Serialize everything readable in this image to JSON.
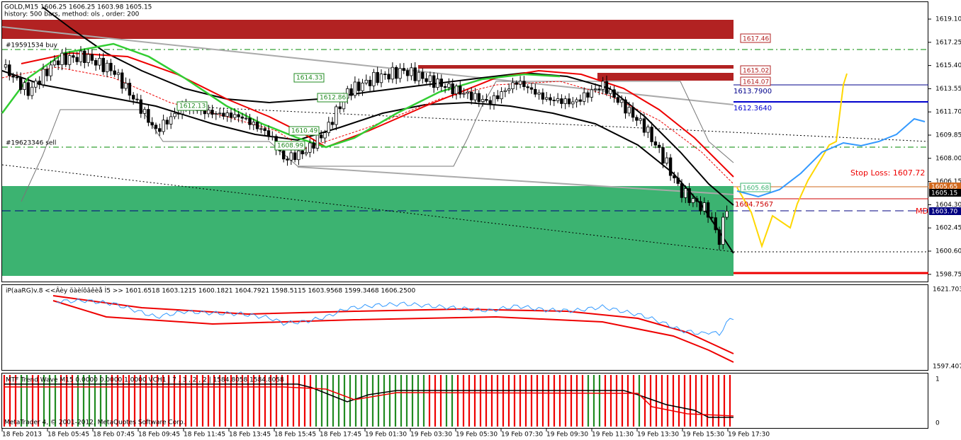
{
  "header": {
    "symbol_line": "GOLD,M15  1606.25 1606.25 1603.98 1605.15",
    "history_line": "history: 500 bars, method: ols , order: 200"
  },
  "main_pane": {
    "price_axis": [
      "1619.10",
      "1617.25",
      "1615.40",
      "1613.55",
      "1611.70",
      "1609.85",
      "1608.00",
      "1606.15",
      "1604.30",
      "1602.45",
      "1600.60",
      "1598.75"
    ],
    "price_tags": {
      "bid": "1605.65",
      "last": "1605.15",
      "md": "1603.70"
    },
    "order_labels": {
      "buy": "#19591534 buy",
      "sell": "#19623346 sell"
    },
    "level_labels": [
      "1617.46",
      "1615.02",
      "1614.07"
    ],
    "blue_labels": [
      "1613.7900",
      "1612.3640"
    ],
    "stop_loss": "Stop Loss: 1607.72",
    "green_boxes": [
      "1614.33",
      "1612.86",
      "1612.13",
      "1610.49",
      "1608.99"
    ],
    "right_labels": {
      "target": "1605.68",
      "mid": "1604.7567",
      "md": "MD"
    }
  },
  "indicator_pane": {
    "title": "iP(aaRG)v.8 <<Âèy öàèíôâêèå Ì5 >> 1601.6518 1603.1215 1600.1821 1604.7921 1598.5115 1603.9568 1599.3468 1606.2500",
    "axis_top": "1621.703",
    "axis_bottom": "1597.407"
  },
  "trend_pane": {
    "title": "MTF Trend Wave M15 0.0000 0.0000 1.0000 VCH1 | 7 , 3 , 2 , 2 | 1584.8058 1584.8058",
    "axis_top": "1",
    "axis_bottom": "0",
    "footer": "MetaTrader 4, © 2001-2012, MetaQuotes Software Corp."
  },
  "time_axis": [
    "18 Feb 2013",
    "18 Feb 05:45",
    "18 Feb 07:45",
    "18 Feb 09:45",
    "18 Feb 11:45",
    "18 Feb 13:45",
    "18 Feb 15:45",
    "18 Feb 17:45",
    "19 Feb 01:30",
    "19 Feb 03:30",
    "19 Feb 05:30",
    "19 Feb 07:30",
    "19 Feb 09:30",
    "19 Feb 11:30",
    "19 Feb 13:30",
    "19 Feb 15:30",
    "19 Feb 17:30"
  ]
}
